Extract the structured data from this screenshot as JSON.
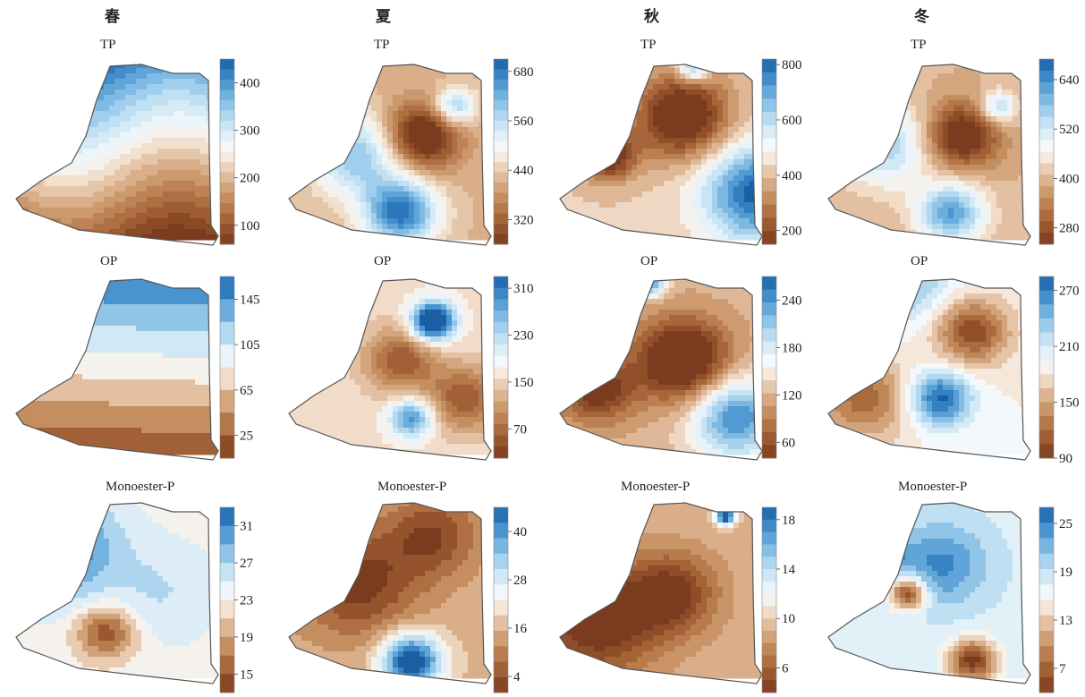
{
  "seasons": [
    "春",
    "夏",
    "秋",
    "冬"
  ],
  "palette": {
    "brown": [
      "#7a3b1e",
      "#8e4d28",
      "#a46337",
      "#b77b4c",
      "#c99467",
      "#d9ae88",
      "#e8cbb0",
      "#f6eadd"
    ],
    "blue": [
      "#f4f9fc",
      "#dcedf7",
      "#bfdff2",
      "#9acbeb",
      "#72b3e0",
      "#4d97d0",
      "#2f7dbf",
      "#1a5ea3"
    ]
  },
  "chart_data": [
    {
      "type": "heatmap",
      "season": "春",
      "title": "TP",
      "ticks": [
        100,
        200,
        300,
        400
      ],
      "range": [
        60,
        450
      ],
      "levels": 18
    },
    {
      "type": "heatmap",
      "season": "夏",
      "title": "TP",
      "ticks": [
        320,
        440,
        560,
        680
      ],
      "range": [
        260,
        710
      ],
      "levels": 18
    },
    {
      "type": "heatmap",
      "season": "秋",
      "title": "TP",
      "ticks": [
        200,
        400,
        600,
        800
      ],
      "range": [
        150,
        820
      ],
      "levels": 14
    },
    {
      "type": "heatmap",
      "season": "冬",
      "title": "TP",
      "ticks": [
        280,
        400,
        520,
        640
      ],
      "range": [
        240,
        690
      ],
      "levels": 16
    },
    {
      "type": "heatmap",
      "season": "春",
      "title": "OP",
      "ticks": [
        25,
        65,
        105,
        145
      ],
      "range": [
        5,
        165
      ],
      "levels": 8
    },
    {
      "type": "heatmap",
      "season": "夏",
      "title": "OP",
      "ticks": [
        70,
        150,
        230,
        310
      ],
      "range": [
        20,
        330
      ],
      "levels": 16
    },
    {
      "type": "heatmap",
      "season": "秋",
      "title": "OP",
      "ticks": [
        60,
        120,
        180,
        240
      ],
      "range": [
        40,
        270
      ],
      "levels": 14
    },
    {
      "type": "heatmap",
      "season": "冬",
      "title": "OP",
      "ticks": [
        90,
        150,
        210,
        270
      ],
      "range": [
        90,
        285
      ],
      "levels": 13
    },
    {
      "type": "heatmap",
      "season": "春",
      "title": "Monoester-P",
      "ticks": [
        15,
        19,
        23,
        27,
        31
      ],
      "range": [
        13,
        33
      ],
      "levels": 10
    },
    {
      "type": "heatmap",
      "season": "夏",
      "title": "Monoester-P",
      "ticks": [
        4,
        16,
        28,
        40
      ],
      "range": [
        0,
        46
      ],
      "levels": 12
    },
    {
      "type": "heatmap",
      "season": "秋",
      "title": "Monoester-P",
      "ticks": [
        6,
        10,
        14,
        18
      ],
      "range": [
        4,
        19
      ],
      "levels": 15
    },
    {
      "type": "heatmap",
      "season": "冬",
      "title": "Monoester-P",
      "ticks": [
        7,
        13,
        19,
        25
      ],
      "range": [
        4,
        27
      ],
      "levels": 12
    }
  ]
}
